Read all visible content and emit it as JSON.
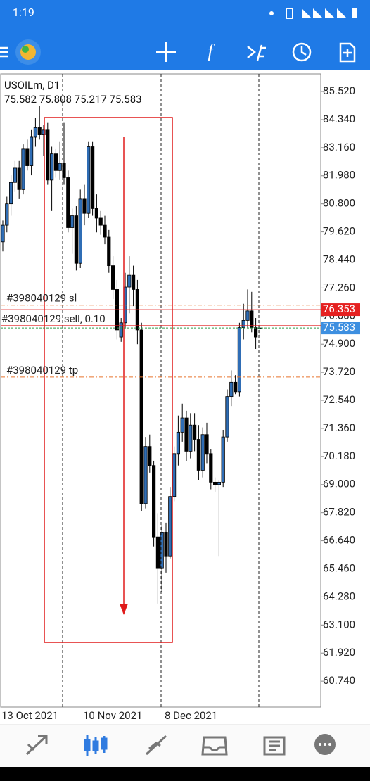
{
  "status_bar": {
    "time": "1:19"
  },
  "chart_data": {
    "type": "candlestick",
    "title": "USOILm, D1",
    "subtitle": "75.582 75.808 75.217 75.583",
    "categories": [
      "13 Oct 2021",
      null,
      null,
      null,
      null,
      null,
      null,
      null,
      null,
      null,
      null,
      null,
      null,
      null,
      null,
      null,
      null,
      null,
      null,
      null,
      "10 Nov 2021",
      null,
      null,
      null,
      null,
      null,
      null,
      null,
      null,
      null,
      null,
      null,
      null,
      null,
      null,
      null,
      null,
      null,
      null,
      null,
      "8 Dec 2021",
      null,
      null,
      null,
      null,
      null,
      null,
      null,
      null,
      null,
      null,
      null,
      null,
      null,
      null,
      null,
      null,
      null,
      null,
      null,
      null,
      null,
      null,
      null
    ],
    "open": [
      79.2,
      79.9,
      80.8,
      81.7,
      82.3,
      81.4,
      83.1,
      82.4,
      83.6,
      84.0,
      83.7,
      83.9,
      81.8,
      82.9,
      82.2,
      82.5,
      81.9,
      79.8,
      80.3,
      78.3,
      81.0,
      80.4,
      83.2,
      80.6,
      80.2,
      79.9,
      79.4,
      78.2,
      77.2,
      75.2,
      75.8,
      77.3,
      77.8,
      77.2,
      75.5,
      68.2,
      70.6,
      69.8,
      66.8,
      65.5,
      67.0,
      66.0,
      68.5,
      70.3,
      71.2,
      71.8,
      70.4,
      71.5,
      70.9,
      69.6,
      71.1,
      70.3,
      69.1,
      69.0,
      69.1,
      71.0,
      72.7,
      73.3,
      72.9,
      75.6,
      75.9,
      76.3,
      75.6,
      75.582
    ],
    "high": [
      80.1,
      81.1,
      82.0,
      82.6,
      82.6,
      83.3,
      83.5,
      83.9,
      84.4,
      84.9,
      84.1,
      84.2,
      83.2,
      83.1,
      83.4,
      84.2,
      82.2,
      80.6,
      80.7,
      81.4,
      81.6,
      83.4,
      83.4,
      81.2,
      80.5,
      80.3,
      79.7,
      78.6,
      77.6,
      76.0,
      77.9,
      78.6,
      78.2,
      77.6,
      75.8,
      71.0,
      71.1,
      70.0,
      67.8,
      67.3,
      67.4,
      68.9,
      70.6,
      71.9,
      72.4,
      72.1,
      72.0,
      72.0,
      71.5,
      71.4,
      71.6,
      70.5,
      69.3,
      69.2,
      71.3,
      73.0,
      73.8,
      73.6,
      75.8,
      76.6,
      77.2,
      77.1,
      76.0,
      75.808
    ],
    "low": [
      78.8,
      79.6,
      80.3,
      81.3,
      81.0,
      81.2,
      82.2,
      82.0,
      83.2,
      83.5,
      82.8,
      81.6,
      80.5,
      81.9,
      81.8,
      81.6,
      79.6,
      78.7,
      78.0,
      78.1,
      79.9,
      80.2,
      80.3,
      79.6,
      79.5,
      79.1,
      77.9,
      76.8,
      75.1,
      75.0,
      75.6,
      76.2,
      76.5,
      74.9,
      67.9,
      68.0,
      69.5,
      66.4,
      64.0,
      64.5,
      65.3,
      65.9,
      68.3,
      69.8,
      70.8,
      70.0,
      70.1,
      70.4,
      69.2,
      69.3,
      69.9,
      68.8,
      68.7,
      66.0,
      68.9,
      70.8,
      72.3,
      72.8,
      72.7,
      75.1,
      75.6,
      75.4,
      74.7,
      75.217
    ],
    "close": [
      79.9,
      80.8,
      81.7,
      82.3,
      81.4,
      83.1,
      82.4,
      83.6,
      84.0,
      83.7,
      83.9,
      81.8,
      82.9,
      82.2,
      82.5,
      81.9,
      79.8,
      80.3,
      78.3,
      81.0,
      80.4,
      83.2,
      80.6,
      80.2,
      79.9,
      79.4,
      78.2,
      77.2,
      75.5,
      75.8,
      77.3,
      77.8,
      77.2,
      75.5,
      68.2,
      70.6,
      69.8,
      66.8,
      65.5,
      67.0,
      66.0,
      68.5,
      70.3,
      71.2,
      71.8,
      70.4,
      71.5,
      70.9,
      69.6,
      71.1,
      70.3,
      69.1,
      69.0,
      69.1,
      71.0,
      72.7,
      73.3,
      72.9,
      75.6,
      75.9,
      76.3,
      75.6,
      75.2,
      75.583
    ],
    "up_color": "#2f6db5",
    "down_color": "#000000",
    "ylim": [
      59.65,
      86.26
    ],
    "yticks": [
      {
        "value": 85.52,
        "label": "85.520"
      },
      {
        "value": 84.34,
        "label": "84.340"
      },
      {
        "value": 83.16,
        "label": "83.160"
      },
      {
        "value": 81.98,
        "label": "81.980"
      },
      {
        "value": 80.8,
        "label": "80.800"
      },
      {
        "value": 79.62,
        "label": "79.620"
      },
      {
        "value": 78.44,
        "label": "78.440"
      },
      {
        "value": 77.26,
        "label": "77.260"
      },
      {
        "value": 76.08,
        "label": "76.080"
      },
      {
        "value": 74.9,
        "label": "74.900"
      },
      {
        "value": 73.72,
        "label": "73.720"
      },
      {
        "value": 72.54,
        "label": "72.540"
      },
      {
        "value": 71.36,
        "label": "71.360"
      },
      {
        "value": 70.18,
        "label": "70.180"
      },
      {
        "value": 69.0,
        "label": "69.000"
      },
      {
        "value": 67.82,
        "label": "67.820"
      },
      {
        "value": 66.64,
        "label": "66.640"
      },
      {
        "value": 65.46,
        "label": "65.460"
      },
      {
        "value": 64.28,
        "label": "64.280"
      },
      {
        "value": 63.1,
        "label": "63.100"
      },
      {
        "value": 61.92,
        "label": "61.920"
      },
      {
        "value": 60.74,
        "label": "60.740"
      }
    ],
    "levels": [
      {
        "label": "#398040129 sl",
        "value": 76.54,
        "color": "#e8742c",
        "dashed": true
      },
      {
        "label": "#398040129 sell, 0.10",
        "value": 75.67,
        "color": "#e01b1b",
        "dashed": false
      },
      {
        "label": "#398040129 tp",
        "value": 73.52,
        "color": "#e8742c",
        "dashed": true
      }
    ],
    "price_labels": [
      {
        "value": 76.353,
        "color": "#e52020",
        "dashed": false
      },
      {
        "value": 75.583,
        "color": "#3d8fe0",
        "dashed": true,
        "line_color": "#2e9a4a"
      }
    ]
  }
}
